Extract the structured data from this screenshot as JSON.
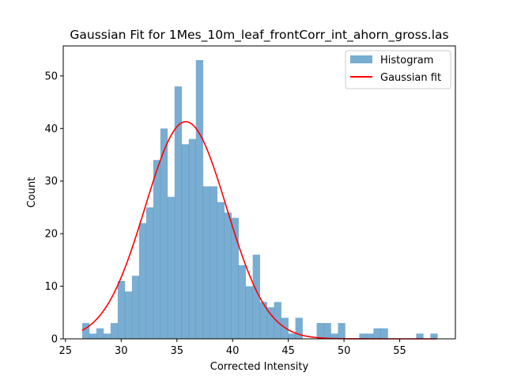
{
  "chart_data": {
    "type": "bar",
    "title": "Gaussian Fit for 1Mes_10m_leaf_frontCorr_int_ahorn_gross.las",
    "xlabel": "Corrected Intensity",
    "ylabel": "Count",
    "xlim": [
      24.8,
      60.0
    ],
    "ylim": [
      0,
      55.7
    ],
    "xticks": [
      25,
      30,
      35,
      40,
      45,
      50,
      55
    ],
    "yticks": [
      0,
      10,
      20,
      30,
      40,
      50
    ],
    "grid": false,
    "legend_position": "top-right",
    "histogram": {
      "name": "Histogram",
      "color": "#1f77b4",
      "alpha": 0.6,
      "bin_start": 26.5,
      "bin_width": 0.6378,
      "counts": [
        3,
        1,
        2,
        1,
        3,
        11,
        9,
        12,
        22,
        25,
        34,
        40,
        27,
        48,
        37,
        38,
        53,
        29,
        29,
        26,
        24,
        23,
        14,
        10,
        16,
        7,
        6,
        7,
        4,
        1,
        4,
        0,
        0,
        3,
        3,
        1,
        3,
        0,
        0,
        1,
        1,
        2,
        2,
        0,
        0,
        0,
        0,
        1,
        0,
        1
      ]
    },
    "gaussian_fit": {
      "name": "Gaussian fit",
      "color": "#ff0000",
      "amplitude": 41.3,
      "mean": 35.8,
      "sigma": 3.65,
      "x_range": [
        26.5,
        58.3
      ]
    }
  }
}
